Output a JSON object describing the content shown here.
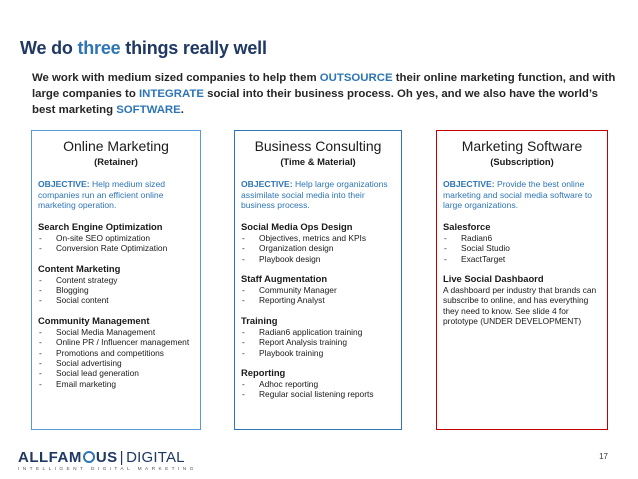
{
  "slide": {
    "title_prefix": "We do ",
    "title_highlight": "three",
    "title_suffix": " things really well",
    "intro": {
      "t1": "We work with medium sized companies to help them ",
      "k1": "OUTSOURCE",
      "t2": " their online marketing function, and with large companies to ",
      "k2": "INTEGRATE",
      "t3": " social into their business process. Oh yes, and we also have the world’s best marketing ",
      "k3": "SOFTWARE",
      "t4": "."
    },
    "page_number": "17"
  },
  "colors": {
    "navy": "#1f3864",
    "accent_blue": "#2e75b6",
    "box1_border": "#5b9bd5",
    "box3_border": "#c00000"
  },
  "boxes": [
    {
      "heading": "Online Marketing",
      "subheading": "(Retainer)",
      "objective_label": "OBJECTIVE:",
      "objective_text": " Help medium sized companies run an efficient online marketing operation.",
      "sections": [
        {
          "title": "Search Engine Optimization",
          "items": [
            "On-site SEO optimization",
            "Conversion Rate Optimization"
          ]
        },
        {
          "title": "Content Marketing",
          "items": [
            "Content strategy",
            "Blogging",
            "Social content"
          ]
        },
        {
          "title": "Community Management",
          "items": [
            "Social Media Management",
            "Online PR / Influencer management",
            "Promotions and competitions",
            "Social advertising",
            "Social lead generation",
            "Email marketing"
          ]
        }
      ]
    },
    {
      "heading": "Business Consulting",
      "subheading": "(Time & Material)",
      "objective_label": "OBJECTIVE:",
      "objective_text": " Help large organizations assimilate social media into their business process.",
      "sections": [
        {
          "title": "Social Media Ops Design",
          "items": [
            "Objectives, metrics and KPIs",
            "Organization design",
            "Playbook design"
          ]
        },
        {
          "title": "Staff Augmentation",
          "items": [
            "Community Manager",
            "Reporting Analyst"
          ]
        },
        {
          "title": "Training",
          "items": [
            "Radian6 application training",
            "Report Analysis training",
            "Playbook training"
          ]
        },
        {
          "title": "Reporting",
          "items": [
            "Adhoc reporting",
            "Regular social listening reports"
          ]
        }
      ]
    },
    {
      "heading": "Marketing Software",
      "subheading": "(Subscription)",
      "objective_label": "OBJECTIVE:",
      "objective_text": " Provide the best online marketing and social media software to large organizations.",
      "sections": [
        {
          "title": "Salesforce",
          "items": [
            "Radian6",
            "Social Studio",
            "ExactTarget"
          ]
        }
      ],
      "extra_title": "Live Social Dashbaord",
      "extra_text": "A dashboard per industry that brands can subscribe to online, and has everything they need to know.  See slide 4 for prototype (UNDER DEVELOPMENT)"
    }
  ],
  "logo": {
    "part1": "ALLFAM",
    "part2": "US",
    "separator": "|",
    "part3": "DIGITAL",
    "tagline": "INTELLIGENT DIGITAL MARKETING"
  }
}
